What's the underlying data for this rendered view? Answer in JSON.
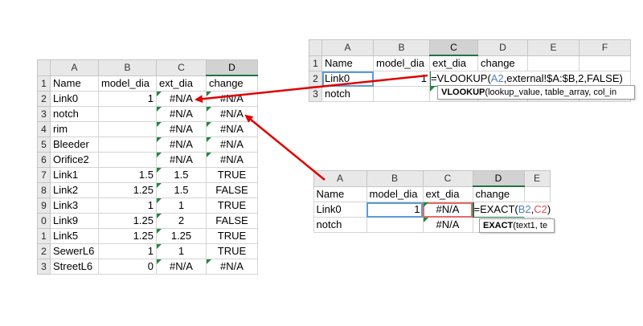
{
  "main_sheet": {
    "columns": [
      "A",
      "B",
      "C",
      "D"
    ],
    "header_row": {
      "name": "Name",
      "model_dia": "model_dia",
      "ext_dia": "ext_dia",
      "change": "change"
    },
    "rows": [
      {
        "num": "1",
        "name": "Name",
        "model_dia": "model_dia",
        "ext_dia": "ext_dia",
        "change": "change"
      },
      {
        "num": "2",
        "name": "Link0",
        "model_dia": "1",
        "ext_dia": "#N/A",
        "change": "#N/A"
      },
      {
        "num": "3",
        "name": "notch",
        "model_dia": "",
        "ext_dia": "#N/A",
        "change": "#N/A"
      },
      {
        "num": "4",
        "name": "rim",
        "model_dia": "",
        "ext_dia": "#N/A",
        "change": "#N/A"
      },
      {
        "num": "5",
        "name": "Bleeder",
        "model_dia": "",
        "ext_dia": "#N/A",
        "change": "#N/A"
      },
      {
        "num": "6",
        "name": "Orifice2",
        "model_dia": "",
        "ext_dia": "#N/A",
        "change": "#N/A"
      },
      {
        "num": "7",
        "name": "Link1",
        "model_dia": "1.5",
        "ext_dia": "1.5",
        "change": "TRUE"
      },
      {
        "num": "8",
        "name": "Link2",
        "model_dia": "1.25",
        "ext_dia": "1.5",
        "change": "FALSE"
      },
      {
        "num": "9",
        "name": "Link3",
        "model_dia": "1",
        "ext_dia": "1",
        "change": "TRUE"
      },
      {
        "num": "0",
        "name": "Link9",
        "model_dia": "1.25",
        "ext_dia": "2",
        "change": "FALSE"
      },
      {
        "num": "1",
        "name": "Link5",
        "model_dia": "1.25",
        "ext_dia": "1.25",
        "change": "TRUE"
      },
      {
        "num": "2",
        "name": "SewerL6",
        "model_dia": "1",
        "ext_dia": "1",
        "change": "TRUE"
      },
      {
        "num": "3",
        "name": "StreetL6",
        "model_dia": "0",
        "ext_dia": "#N/A",
        "change": "#N/A"
      }
    ]
  },
  "vlookup_sheet": {
    "columns": [
      "A",
      "B",
      "C",
      "D",
      "E",
      "F"
    ],
    "row_nums": [
      "1",
      "2",
      "3"
    ],
    "row1": {
      "name": "Name",
      "model_dia": "model_dia",
      "ext_dia": "ext_dia",
      "change": "change"
    },
    "row2": {
      "name": "Link0",
      "model_dia": "1"
    },
    "row3": {
      "name": "notch"
    },
    "formula": {
      "prefix": "=VLOOKUP(",
      "ref": "A2",
      "suffix": ",external!$A:$B,2,FALSE)"
    },
    "tooltip": {
      "fn": "VLOOKUP",
      "args": "(lookup_value, table_array, col_in"
    }
  },
  "exact_sheet": {
    "columns": [
      "A",
      "B",
      "C",
      "D",
      "E"
    ],
    "row1": {
      "name": "Name",
      "model_dia": "model_dia",
      "ext_dia": "ext_dia",
      "change": "change"
    },
    "row2": {
      "name": "Link0",
      "model_dia": "1",
      "ext_dia": "#N/A"
    },
    "row3": {
      "name": "notch",
      "ext_dia": "#N/A"
    },
    "formula": {
      "prefix": "=EXACT(",
      "ref1": "B2",
      "sep": ",",
      "ref2": "C2",
      "suffix": ")"
    },
    "tooltip": {
      "fn": "EXACT",
      "args": "(text1, te"
    }
  },
  "colors": {
    "excel_green": "#217346",
    "arrow_red": "#e00000",
    "ref_blue": "#4f81bd",
    "ref_red": "#d9534f"
  }
}
